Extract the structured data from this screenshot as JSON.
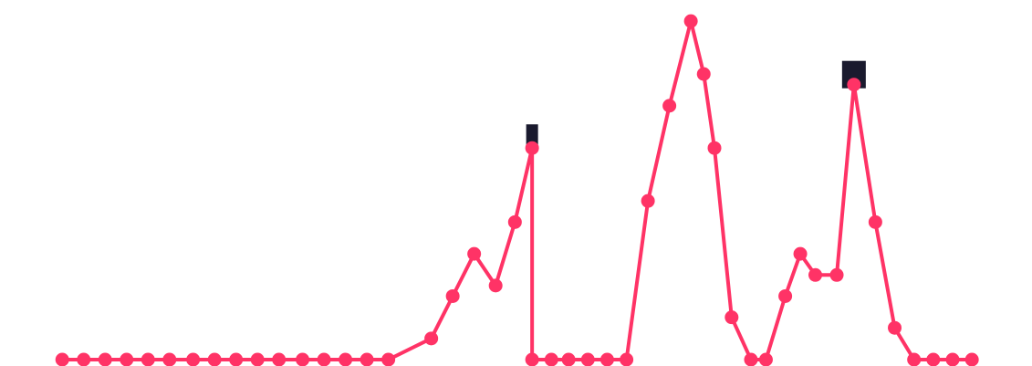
{
  "chart_data": {
    "type": "line",
    "title": "",
    "xlabel": "",
    "ylabel": "",
    "x": [
      1.2,
      2.2,
      3.2,
      4.2,
      5.2,
      6.2,
      7.3,
      8.3,
      9.3,
      10.3,
      11.3,
      12.4,
      13.4,
      14.4,
      15.4,
      16.4,
      18.4,
      19.4,
      20.4,
      21.4,
      22.3,
      23.1,
      23.1,
      24.0,
      24.8,
      25.7,
      26.6,
      27.5,
      28.5,
      29.5,
      30.5,
      31.1,
      31.6,
      32.4,
      33.3,
      34.0,
      34.9,
      35.6,
      36.3,
      37.3,
      38.1,
      39.1,
      40.0,
      40.9,
      41.8,
      42.7,
      43.6
    ],
    "y": [
      0,
      0,
      0,
      0,
      0,
      0,
      0,
      0,
      0,
      0,
      0,
      0,
      0,
      0,
      0,
      0,
      2,
      6,
      10,
      7,
      13,
      20,
      0,
      0,
      0,
      0,
      0,
      0,
      15,
      24,
      32,
      27,
      20,
      4,
      0,
      0,
      6,
      10,
      8,
      8,
      26,
      13,
      3,
      0,
      0,
      0,
      0
    ],
    "marker_x": [
      1.2,
      2.2,
      3.2,
      4.2,
      5.2,
      6.2,
      7.3,
      8.3,
      9.3,
      10.3,
      11.3,
      12.4,
      13.4,
      14.4,
      15.4,
      16.4,
      18.4,
      19.4,
      20.4,
      21.4,
      22.3,
      23.1,
      23.1,
      24.0,
      24.8,
      25.7,
      26.6,
      27.5,
      28.5,
      29.5,
      30.5,
      31.1,
      31.6,
      32.4,
      33.3,
      34.0,
      34.9,
      35.6,
      36.3,
      37.3,
      38.1,
      39.1,
      40.0,
      40.9,
      41.8,
      42.7,
      43.6
    ],
    "marker_y": [
      0,
      0,
      0,
      0,
      0,
      0,
      0,
      0,
      0,
      0,
      0,
      0,
      0,
      0,
      0,
      0,
      2,
      6,
      10,
      7,
      13,
      20,
      0,
      0,
      0,
      0,
      0,
      0,
      15,
      24,
      32,
      27,
      20,
      4,
      0,
      0,
      6,
      10,
      8,
      8,
      26,
      13,
      3,
      0,
      0,
      0,
      0
    ],
    "highlight_markers": [
      {
        "x": 23.1,
        "y": 20,
        "shape": "square"
      },
      {
        "x": 38.1,
        "y": 26,
        "shape": "square"
      }
    ],
    "xlim": [
      0,
      46.4
    ],
    "ylim": [
      0,
      34
    ],
    "grid": false,
    "legend": "none",
    "line_color": "#ff3366",
    "marker_color": "#ff3366",
    "highlight_color": "#1a1a2e"
  }
}
